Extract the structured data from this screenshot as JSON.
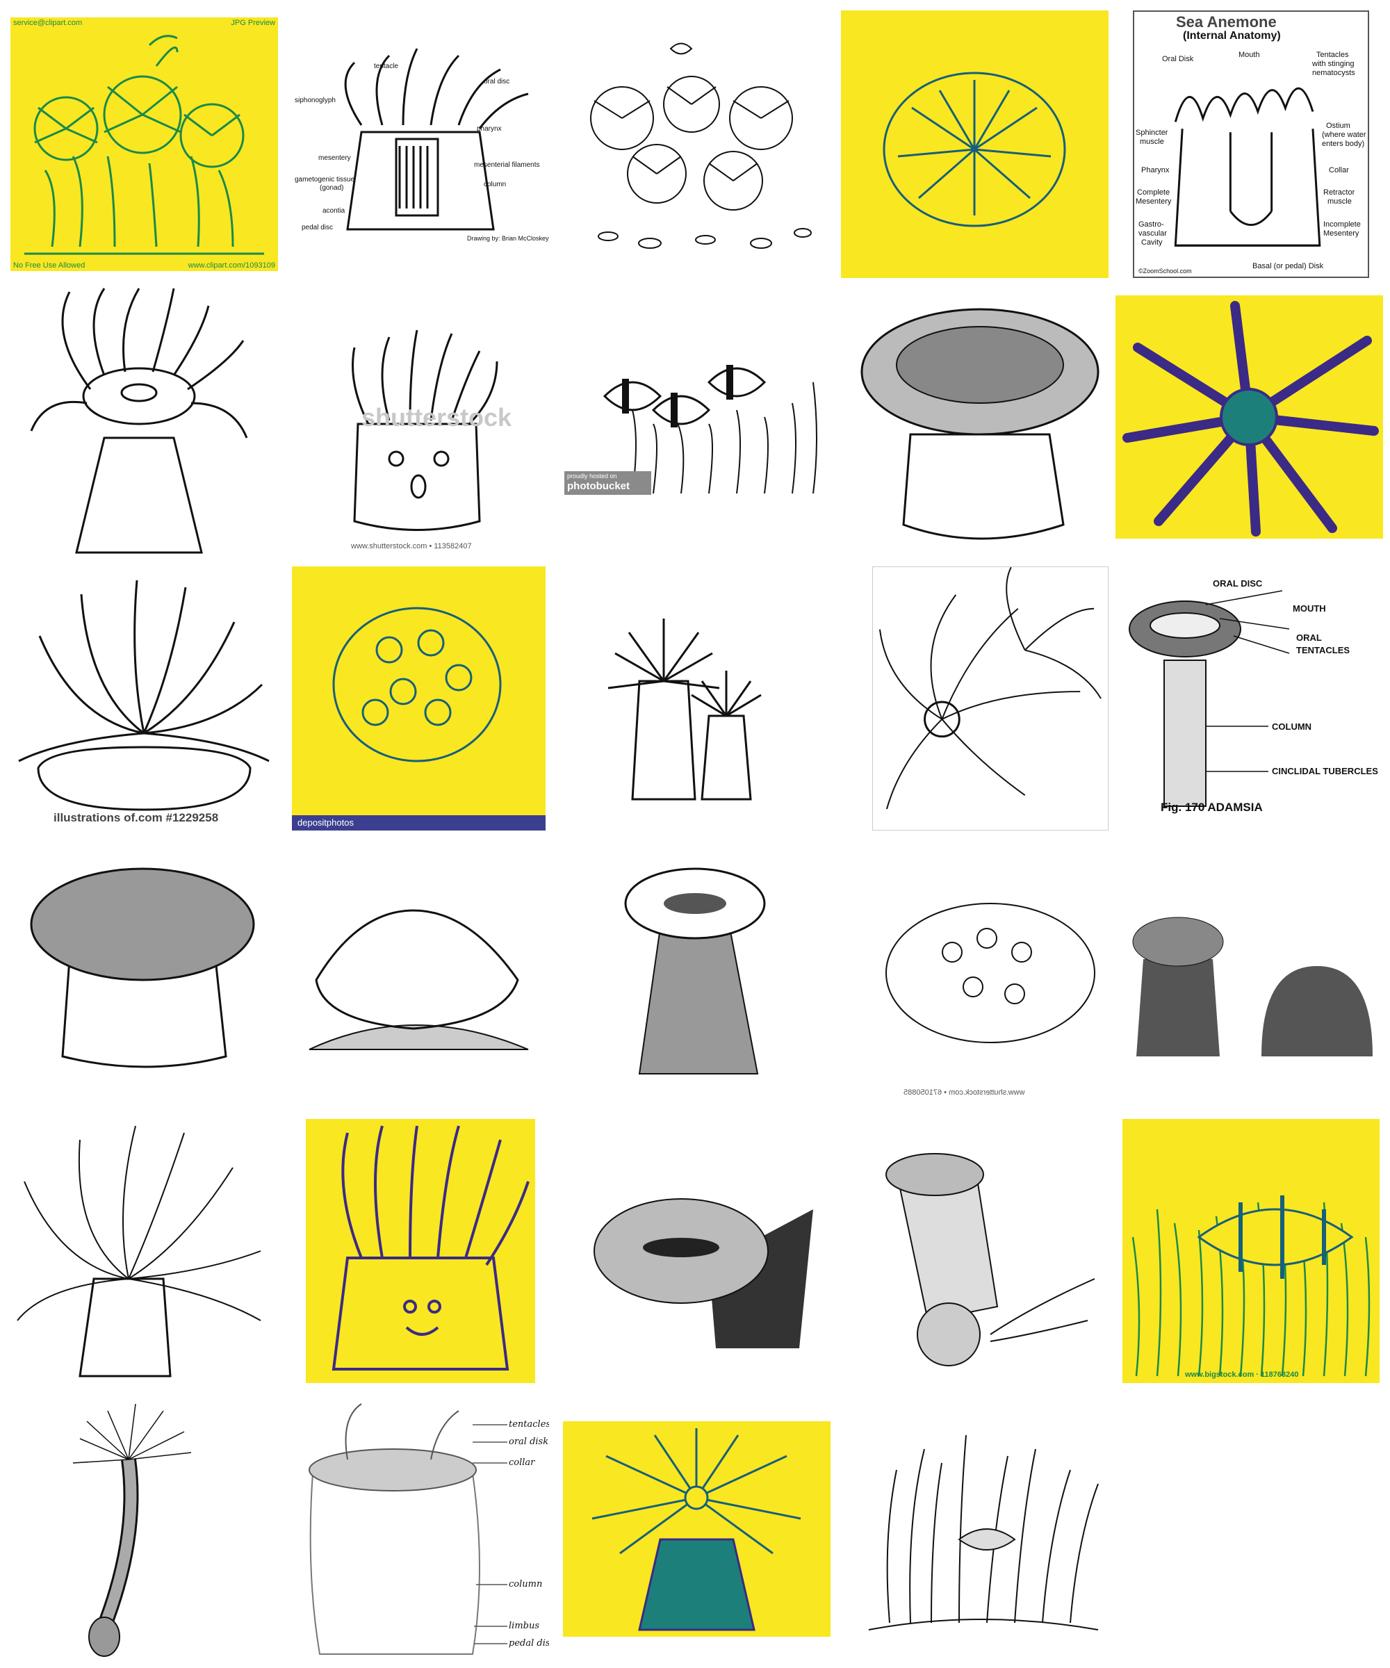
{
  "colors": {
    "yellow": "#f9e721",
    "green": "#1a8a4a",
    "teal": "#16607a",
    "ink": "#111111",
    "purple": "#3b2a86"
  },
  "tiles": {
    "t1": {
      "top_left": "service@clipart.com",
      "top_right": "JPG Preview",
      "bottom_left": "No Free Use Allowed",
      "bottom_right": "www.clipart.com/1093109"
    },
    "t2": {
      "labels": [
        "tentacle",
        "oral disc",
        "siphonoglyph",
        "pharynx",
        "mesentery",
        "mesenterial filaments",
        "gametogenic tissue",
        "(gonad)",
        "column",
        "acontia",
        "pedal disc"
      ],
      "credit": "Drawing by:  Brian McCloskey"
    },
    "t5": {
      "title": "Sea Anemone",
      "subtitle": "(Internal Anatomy)",
      "labels": [
        "Oral Disk",
        "Mouth",
        "Tentacles",
        "with stinging",
        "nematocysts",
        "Sphincter",
        "muscle",
        "Ostium",
        "(where water",
        "enters body)",
        "Pharynx",
        "Collar",
        "Complete",
        "Mesentery",
        "Retractor",
        "muscle",
        "Gastro-",
        "vascular",
        "Cavity",
        "Incomplete",
        "Mesentery",
        "Basal (or pedal) Disk"
      ],
      "credit": "©ZoomSchool.com"
    },
    "t7": {
      "watermark": "shutterstock",
      "id": "www.shutterstock.com • 113582407"
    },
    "t8": {
      "badge_small": "proudly hosted on",
      "badge": "photobucket"
    },
    "t11": {
      "caption": "illustrations of.com   #1229258"
    },
    "t12": {
      "brand": "depositphotos"
    },
    "t15": {
      "labels": [
        "ORAL DISC",
        "MOUTH",
        "ORAL",
        "TENTACLES",
        "COLUMN",
        "CINCLIDAL TUBERCLES"
      ],
      "caption": "Fig. 170 ADAMSIA"
    },
    "t19": {
      "id": "www.shutterstock.com • 671050885"
    },
    "t25": {
      "credit": "www.bigstock.com · 118763240"
    },
    "t27": {
      "labels": [
        "tentacles",
        "oral disk",
        "collar",
        "column",
        "limbus",
        "pedal disk"
      ]
    }
  }
}
